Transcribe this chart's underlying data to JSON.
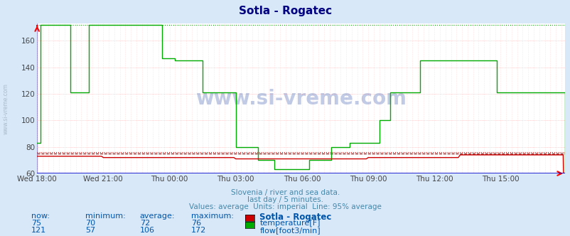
{
  "title": "Sotla - Rogatec",
  "title_color": "#000080",
  "title_fontsize": 11,
  "bg_color": "#d8e8f8",
  "plot_bg_color": "#ffffff",
  "xlim": [
    0,
    287
  ],
  "ylim": [
    60,
    173
  ],
  "yticks": [
    60,
    80,
    100,
    120,
    140,
    160
  ],
  "xtick_labels": [
    "Wed 18:00",
    "Wed 21:00",
    "Thu 00:00",
    "Thu 03:00",
    "Thu 06:00",
    "Thu 09:00",
    "Thu 12:00",
    "Thu 15:00"
  ],
  "xtick_positions": [
    0,
    36,
    72,
    108,
    144,
    180,
    216,
    252
  ],
  "temp_avg_line": 75,
  "temp_95pct_line": 76,
  "flow_95pct_line": 172,
  "temp_color": "#cc0000",
  "flow_color": "#00aa00",
  "grid_h_color": "#ffaaaa",
  "grid_v_color": "#ffcccc",
  "watermark": "www.si-vreme.com",
  "watermark_color": "#3355aa",
  "footer_line1": "Slovenia / river and sea data.",
  "footer_line2": "last day / 5 minutes.",
  "footer_line3": "Values: average  Units: imperial  Line: 95% average",
  "footer_color": "#4488aa",
  "table_color": "#0055aa",
  "sidebar_text": "www.si-vreme.com",
  "legend_title": "Sotla - Rogatec",
  "legend_entries": [
    "temperature[F]",
    "flow[foot3/min]"
  ],
  "legend_colors": [
    "#cc0000",
    "#00aa00"
  ],
  "now_vals": [
    75,
    121
  ],
  "min_vals": [
    70,
    57
  ],
  "avg_vals": [
    72,
    106
  ],
  "max_vals": [
    76,
    172
  ],
  "flow_segments": [
    {
      "start": 0,
      "end": 2,
      "val": 83
    },
    {
      "start": 2,
      "end": 18,
      "val": 172
    },
    {
      "start": 18,
      "end": 28,
      "val": 121
    },
    {
      "start": 28,
      "end": 68,
      "val": 172
    },
    {
      "start": 68,
      "end": 75,
      "val": 147
    },
    {
      "start": 75,
      "end": 90,
      "val": 145
    },
    {
      "start": 90,
      "end": 108,
      "val": 121
    },
    {
      "start": 108,
      "end": 120,
      "val": 80
    },
    {
      "start": 120,
      "end": 129,
      "val": 70
    },
    {
      "start": 129,
      "end": 148,
      "val": 63
    },
    {
      "start": 148,
      "end": 160,
      "val": 70
    },
    {
      "start": 160,
      "end": 170,
      "val": 80
    },
    {
      "start": 170,
      "end": 180,
      "val": 83
    },
    {
      "start": 180,
      "end": 186,
      "val": 83
    },
    {
      "start": 186,
      "end": 192,
      "val": 100
    },
    {
      "start": 192,
      "end": 208,
      "val": 121
    },
    {
      "start": 208,
      "end": 218,
      "val": 145
    },
    {
      "start": 218,
      "end": 243,
      "val": 145
    },
    {
      "start": 243,
      "end": 250,
      "val": 145
    },
    {
      "start": 250,
      "end": 258,
      "val": 121
    },
    {
      "start": 258,
      "end": 287,
      "val": 121
    }
  ],
  "temp_segments": [
    {
      "start": 0,
      "end": 36,
      "val": 73
    },
    {
      "start": 36,
      "end": 108,
      "val": 72
    },
    {
      "start": 108,
      "end": 180,
      "val": 71
    },
    {
      "start": 180,
      "end": 230,
      "val": 72
    },
    {
      "start": 230,
      "end": 287,
      "val": 74
    }
  ]
}
